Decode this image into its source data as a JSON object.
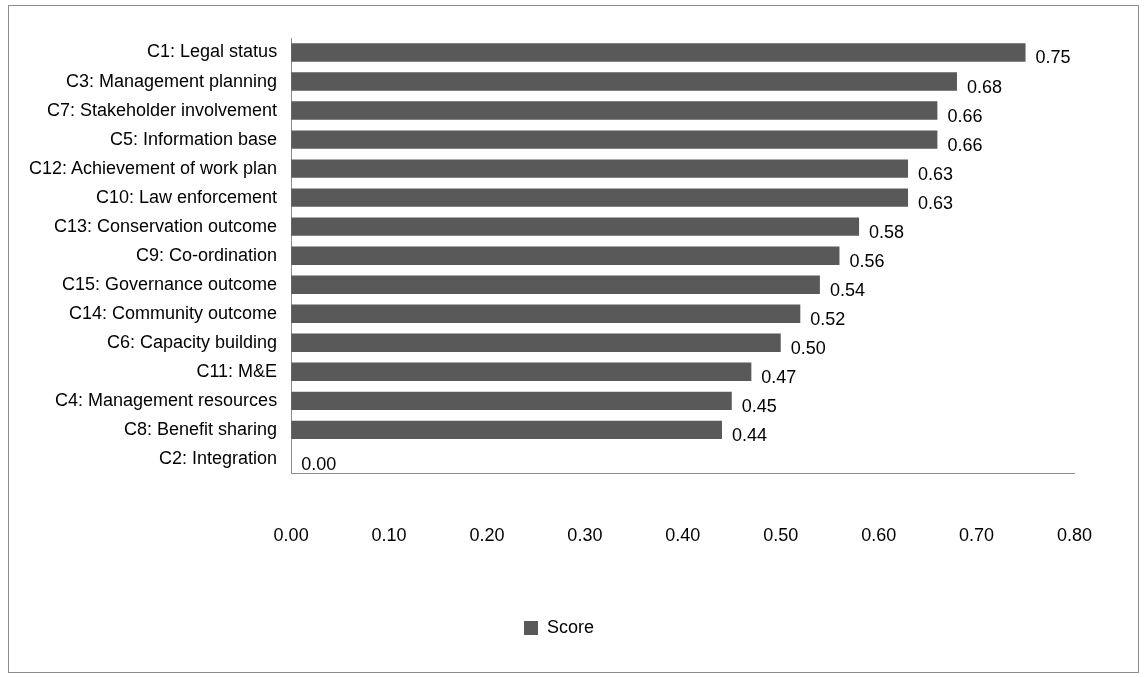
{
  "chart_data": {
    "type": "bar",
    "orientation": "horizontal",
    "categories": [
      "C1: Legal status",
      "C3: Management planning",
      "C7: Stakeholder involvement",
      "C5: Information base",
      "C12: Achievement of work plan",
      "C10: Law enforcement",
      "C13: Conservation outcome",
      "C9: Co-ordination",
      "C15: Governance outcome",
      "C14: Community outcome",
      "C6: Capacity building",
      "C11: M&E",
      "C4: Management resources",
      "C8: Benefit sharing",
      "C2: Integration"
    ],
    "series": [
      {
        "name": "Score",
        "color": "#595959",
        "values": [
          0.75,
          0.68,
          0.66,
          0.66,
          0.63,
          0.63,
          0.58,
          0.56,
          0.54,
          0.52,
          0.5,
          0.47,
          0.45,
          0.44,
          0.0
        ],
        "value_labels": [
          "0.75",
          "0.68",
          "0.66",
          "0.66",
          "0.63",
          "0.63",
          "0.58",
          "0.56",
          "0.54",
          "0.52",
          "0.50",
          "0.47",
          "0.45",
          "0.44",
          "0.00"
        ]
      }
    ],
    "xlim": [
      0,
      0.8
    ],
    "xticks": [
      {
        "value": 0,
        "label": "0.00"
      },
      {
        "value": 0.1,
        "label": "0.10"
      },
      {
        "value": 0.2,
        "label": "0.20"
      },
      {
        "value": 0.3,
        "label": "0.30"
      },
      {
        "value": 0.4,
        "label": "0.40"
      },
      {
        "value": 0.5,
        "label": "0.50"
      },
      {
        "value": 0.6,
        "label": "0.60"
      },
      {
        "value": 0.7,
        "label": "0.70"
      },
      {
        "value": 0.8,
        "label": "0.80"
      }
    ],
    "grid": false,
    "legend": "bottom"
  }
}
